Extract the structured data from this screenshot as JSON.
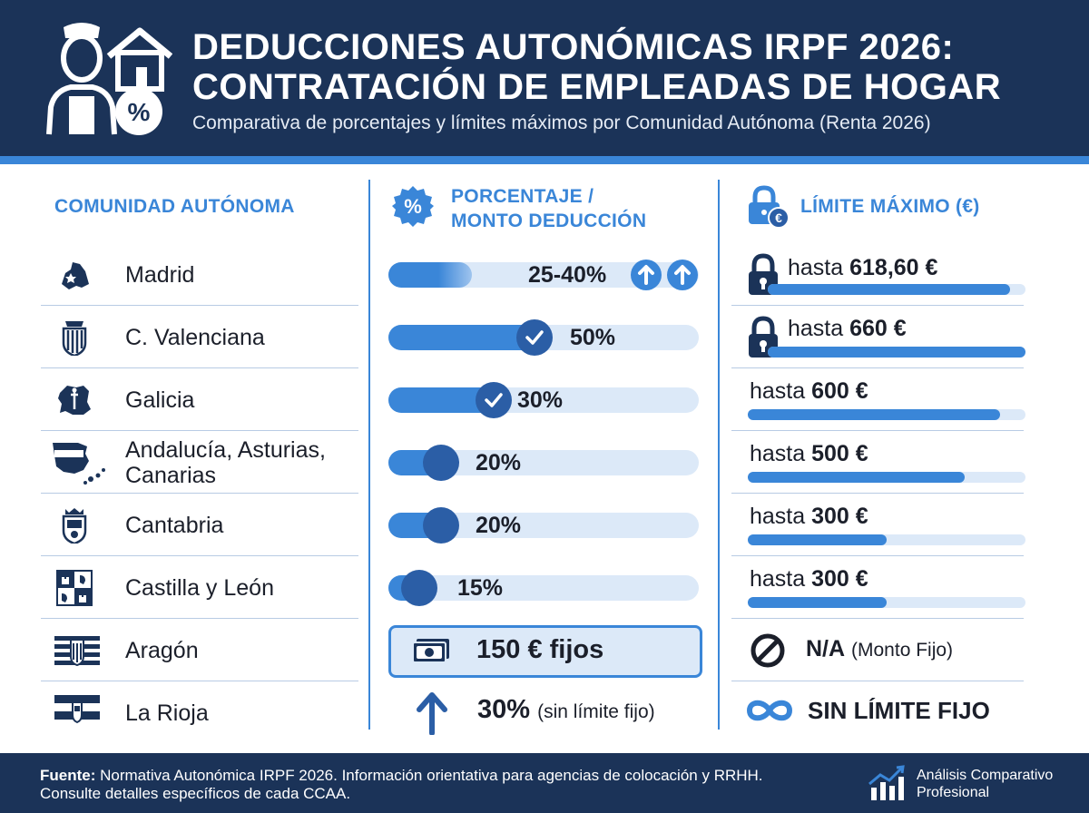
{
  "header": {
    "title_line1": "DEDUCCIONES AUTONÓMICAS IRPF 2026:",
    "title_line2": "CONTRATACIÓN DE EMPLEADAS DE HOGAR",
    "subtitle": "Comparativa de porcentajes y límites máximos por Comunidad Autónoma (Renta 2026)",
    "icon": "housekeeper-house-percent-icon"
  },
  "columns": {
    "region": "COMUNIDAD AUTÓNOMA",
    "percent_line1": "PORCENTAJE /",
    "percent_line2": "MONTO DEDUCCIÓN",
    "limit": "LÍMITE MÁXIMO (€)"
  },
  "rows": [
    {
      "region": "Madrid",
      "icon": "madrid-map-icon",
      "percent": "25-40%",
      "percent_fill": 0.27,
      "limit_prefix": "hasta ",
      "limit_value": "618,60 €",
      "limit_fill": 0.94,
      "limit_icon": "lock-icon"
    },
    {
      "region": "C. Valenciana",
      "icon": "valencia-shield-icon",
      "percent": "50%",
      "percent_fill": 0.47,
      "limit_prefix": "hasta ",
      "limit_value": "660 €",
      "limit_fill": 1.0,
      "limit_icon": "lock-icon"
    },
    {
      "region": "Galicia",
      "icon": "galicia-map-icon",
      "percent": "30%",
      "percent_fill": 0.34,
      "limit_prefix": "hasta ",
      "limit_value": "600 €",
      "limit_fill": 0.91
    },
    {
      "region_line1": "Andalucía, Asturias,",
      "region_line2": "Canarias",
      "icon": "spain-islands-map-icon",
      "percent": "20%",
      "percent_fill": 0.17,
      "limit_prefix": "hasta ",
      "limit_value": "500 €",
      "limit_fill": 0.78
    },
    {
      "region": "Cantabria",
      "icon": "cantabria-shield-icon",
      "percent": "20%",
      "percent_fill": 0.17,
      "limit_prefix": "hasta ",
      "limit_value": "300 €",
      "limit_fill": 0.5
    },
    {
      "region": "Castilla y León",
      "icon": "castilla-leon-arms-icon",
      "percent": "15%",
      "percent_fill": 0.1,
      "limit_prefix": "hasta ",
      "limit_value": "300 €",
      "limit_fill": 0.5
    },
    {
      "region": "Aragón",
      "icon": "aragon-flag-icon",
      "percent": "150 € fijos",
      "percent_icon": "banknote-icon",
      "limit_value": "N/A",
      "limit_note": "(Monto Fijo)",
      "limit_icon": "prohibited-icon"
    },
    {
      "region": "La Rioja",
      "icon": "la-rioja-flag-icon",
      "percent": "30%",
      "percent_note": "(sin límite fijo)",
      "percent_icon": "arrow-up-icon",
      "limit_value": "SIN LÍMITE FIJO",
      "limit_icon": "infinity-icon"
    }
  ],
  "footer": {
    "source_label": "Fuente:",
    "source_text": " Normativa Autonómica IRPF 2026. Información orientativa para agencias de colocación y RRHH.",
    "source_line2": "Consulte detalles específicos de cada CCAA.",
    "brand_line1": "Análisis Comparativo",
    "brand_line2": "Profesional",
    "brand_icon": "growth-chart-icon"
  },
  "colors": {
    "navy": "#1b3358",
    "accent": "#3a86d8",
    "dark_knob": "#2b5ea6",
    "track": "#dce9f8"
  }
}
